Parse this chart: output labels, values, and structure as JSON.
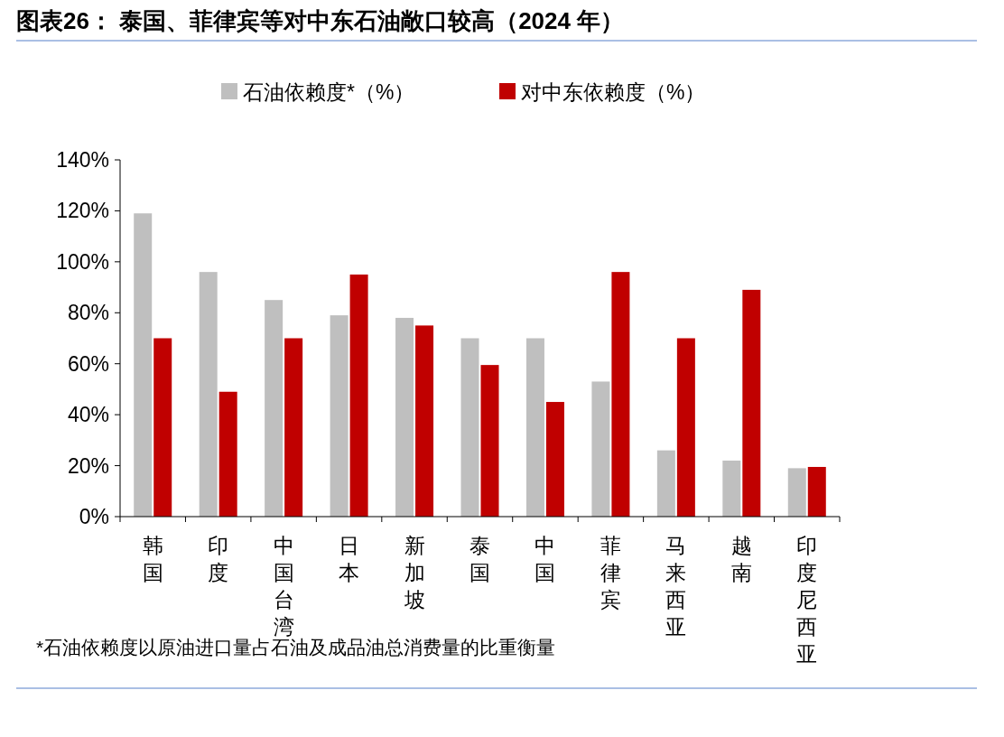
{
  "chart_data": {
    "type": "bar",
    "title": "图表26：  泰国、菲律宾等对中东石油敞口较高（2024 年）",
    "categories": [
      "韩国",
      "印度",
      "中国台湾",
      "日本",
      "新加坡",
      "泰国",
      "中国",
      "菲律宾",
      "马来西亚",
      "越南",
      "印度尼西亚"
    ],
    "series": [
      {
        "name": "石油依赖度*（%）",
        "color": "#bfbfbf",
        "values": [
          119,
          96,
          85,
          79,
          78,
          70,
          70,
          53,
          26,
          22,
          19
        ]
      },
      {
        "name": "对中东依赖度（%）",
        "color": "#c00000",
        "values": [
          70,
          49,
          70,
          95,
          75,
          59.5,
          45,
          96,
          70,
          89,
          19.5
        ]
      }
    ],
    "ylim": [
      0,
      140
    ],
    "yticks": [
      {
        "value": 0,
        "label": "0%"
      },
      {
        "value": 20,
        "label": "20%"
      },
      {
        "value": 40,
        "label": "40%"
      },
      {
        "value": 60,
        "label": "60%"
      },
      {
        "value": 80,
        "label": "80%"
      },
      {
        "value": 100,
        "label": "100%"
      },
      {
        "value": 120,
        "label": "120%"
      },
      {
        "value": 140,
        "label": "140%"
      }
    ],
    "grid": false,
    "legend": "top",
    "annotations": [
      "*石油依赖度以原油进口量占石油及成品油总消费量的比重衡量"
    ]
  }
}
